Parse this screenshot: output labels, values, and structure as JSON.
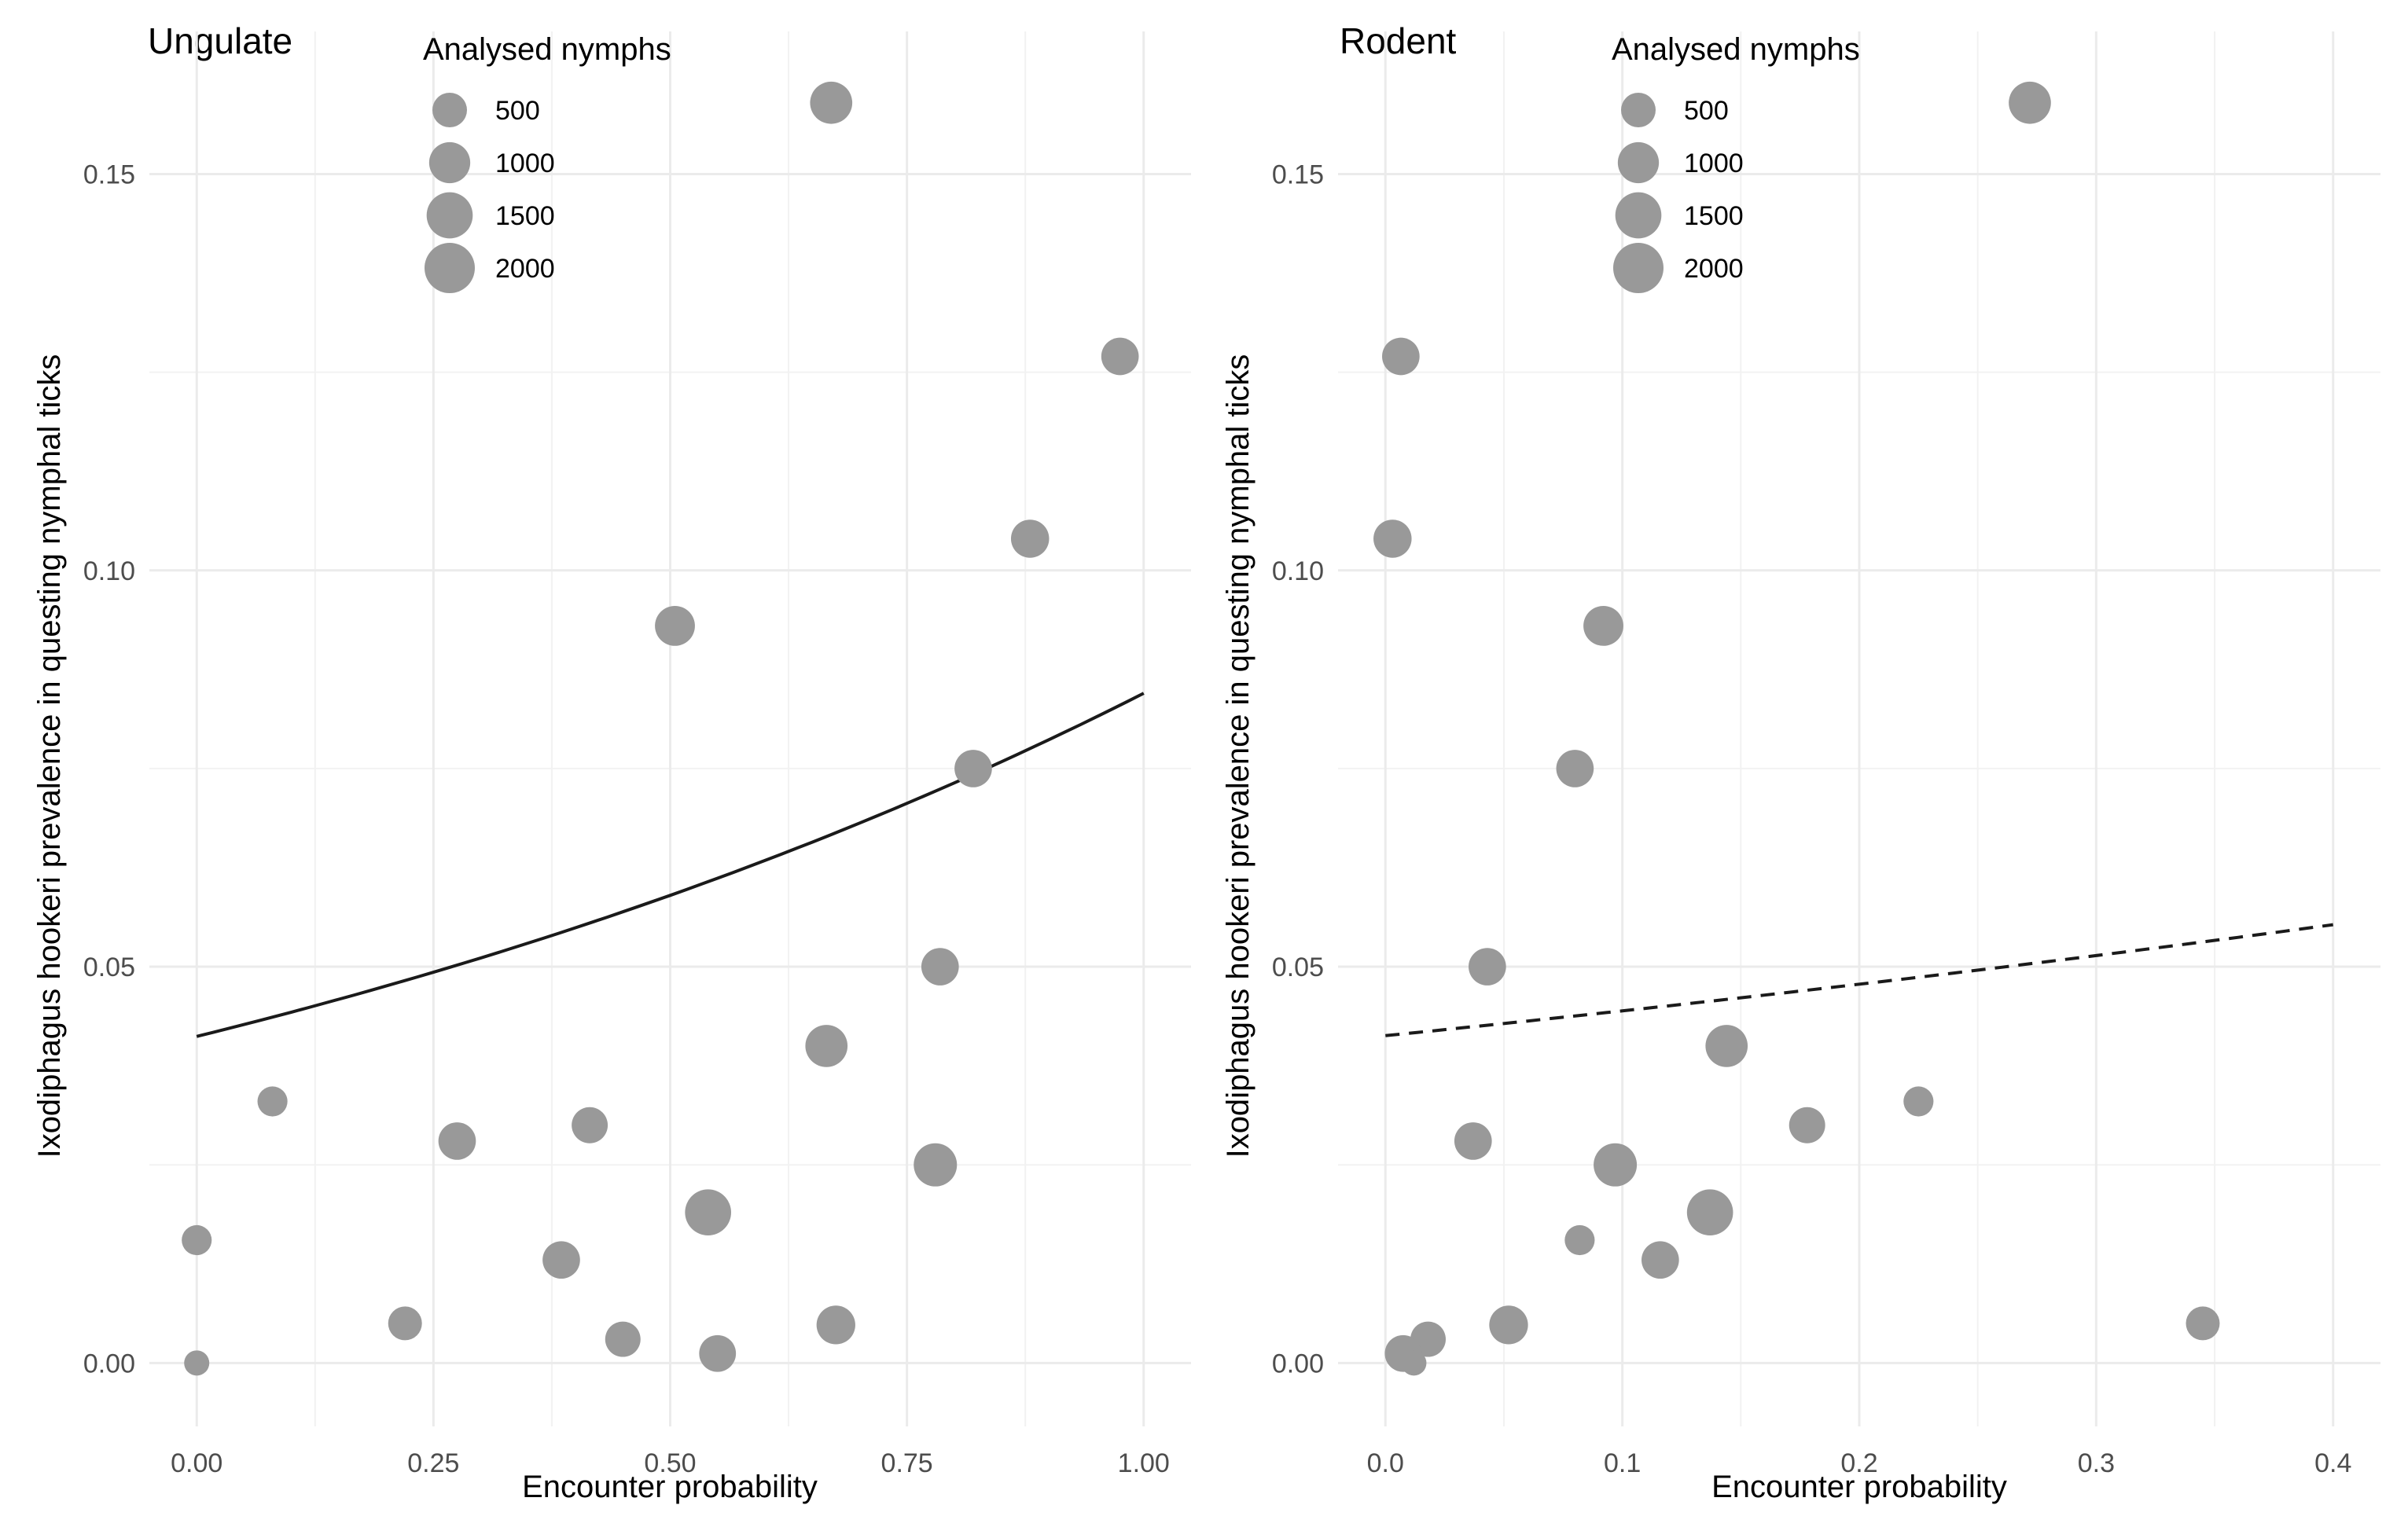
{
  "chart_data": [
    {
      "type": "scatter",
      "title": "Ungulate",
      "xlabel": "Encounter probability",
      "ylabel": "Ixodiphagus hookeri prevalence in questing nymphal ticks",
      "xlim": [
        -0.05,
        1.05
      ],
      "ylim": [
        -0.008,
        0.168
      ],
      "x_ticks": [
        0.0,
        0.25,
        0.5,
        0.75,
        1.0
      ],
      "x_tick_labels": [
        "0.00",
        "0.25",
        "0.50",
        "0.75",
        "1.00"
      ],
      "y_ticks": [
        0.0,
        0.05,
        0.1,
        0.15
      ],
      "y_tick_labels": [
        "0.00",
        "0.05",
        "0.10",
        "0.15"
      ],
      "grid": true,
      "legend": {
        "title": "Analysed nymphs",
        "placement": "top-left",
        "sizes": [
          500,
          1000,
          1500,
          2000
        ],
        "labels": [
          "500",
          "1000",
          "1500",
          "2000"
        ]
      },
      "points": [
        {
          "x": 0.67,
          "y": 0.159,
          "n": 1100
        },
        {
          "x": 0.975,
          "y": 0.127,
          "n": 700
        },
        {
          "x": 0.88,
          "y": 0.104,
          "n": 750
        },
        {
          "x": 0.505,
          "y": 0.093,
          "n": 900
        },
        {
          "x": 0.82,
          "y": 0.075,
          "n": 700
        },
        {
          "x": 0.785,
          "y": 0.05,
          "n": 700
        },
        {
          "x": 0.665,
          "y": 0.04,
          "n": 1100
        },
        {
          "x": 0.08,
          "y": 0.033,
          "n": 250
        },
        {
          "x": 0.275,
          "y": 0.028,
          "n": 700
        },
        {
          "x": 0.415,
          "y": 0.03,
          "n": 600
        },
        {
          "x": 0.78,
          "y": 0.025,
          "n": 1200
        },
        {
          "x": 0.54,
          "y": 0.019,
          "n": 1500
        },
        {
          "x": 0.0,
          "y": 0.0155,
          "n": 250
        },
        {
          "x": 0.385,
          "y": 0.013,
          "n": 700
        },
        {
          "x": 0.22,
          "y": 0.005,
          "n": 450
        },
        {
          "x": 0.675,
          "y": 0.0048,
          "n": 800
        },
        {
          "x": 0.45,
          "y": 0.003,
          "n": 550
        },
        {
          "x": 0.55,
          "y": 0.0012,
          "n": 650
        },
        {
          "x": 0.0,
          "y": 0.0,
          "n": 80
        }
      ],
      "fit": {
        "style": "solid",
        "x_range": [
          0.0,
          1.0
        ],
        "y_at_min": 0.0412,
        "y_at_max": 0.0845
      }
    },
    {
      "type": "scatter",
      "title": "Rodent",
      "xlabel": "Encounter probability",
      "ylabel": "Ixodiphagus hookeri prevalence in questing nymphal ticks",
      "xlim": [
        -0.02,
        0.42
      ],
      "ylim": [
        -0.008,
        0.168
      ],
      "x_ticks": [
        0.0,
        0.1,
        0.2,
        0.3,
        0.4
      ],
      "x_tick_labels": [
        "0.0",
        "0.1",
        "0.2",
        "0.3",
        "0.4"
      ],
      "y_ticks": [
        0.0,
        0.05,
        0.1,
        0.15
      ],
      "y_tick_labels": [
        "0.00",
        "0.05",
        "0.10",
        "0.15"
      ],
      "grid": true,
      "legend": {
        "title": "Analysed nymphs",
        "placement": "top-left",
        "sizes": [
          500,
          1000,
          1500,
          2000
        ],
        "labels": [
          "500",
          "1000",
          "1500",
          "2000"
        ]
      },
      "points": [
        {
          "x": 0.272,
          "y": 0.159,
          "n": 1100
        },
        {
          "x": 0.0065,
          "y": 0.127,
          "n": 700
        },
        {
          "x": 0.003,
          "y": 0.104,
          "n": 750
        },
        {
          "x": 0.092,
          "y": 0.093,
          "n": 900
        },
        {
          "x": 0.08,
          "y": 0.075,
          "n": 700
        },
        {
          "x": 0.043,
          "y": 0.05,
          "n": 700
        },
        {
          "x": 0.144,
          "y": 0.04,
          "n": 1100
        },
        {
          "x": 0.225,
          "y": 0.033,
          "n": 250
        },
        {
          "x": 0.037,
          "y": 0.028,
          "n": 700
        },
        {
          "x": 0.178,
          "y": 0.03,
          "n": 600
        },
        {
          "x": 0.097,
          "y": 0.025,
          "n": 1200
        },
        {
          "x": 0.137,
          "y": 0.019,
          "n": 1500
        },
        {
          "x": 0.082,
          "y": 0.0155,
          "n": 250
        },
        {
          "x": 0.116,
          "y": 0.013,
          "n": 700
        },
        {
          "x": 0.345,
          "y": 0.005,
          "n": 450
        },
        {
          "x": 0.052,
          "y": 0.0048,
          "n": 800
        },
        {
          "x": 0.018,
          "y": 0.003,
          "n": 550
        },
        {
          "x": 0.0075,
          "y": 0.0012,
          "n": 650
        },
        {
          "x": 0.012,
          "y": 0.0,
          "n": 80
        }
      ],
      "fit": {
        "style": "dashed",
        "x_range": [
          0.0,
          0.4
        ],
        "y_at_min": 0.0413,
        "y_at_max": 0.0553
      }
    }
  ]
}
